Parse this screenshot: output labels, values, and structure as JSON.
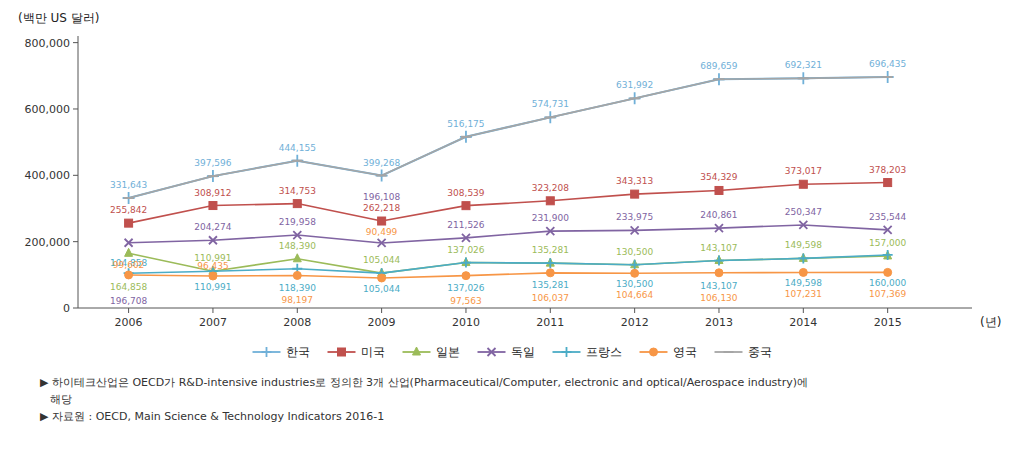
{
  "chart_data": {
    "type": "line",
    "x": [
      2006,
      2007,
      2008,
      2009,
      2010,
      2011,
      2012,
      2013,
      2014,
      2015
    ],
    "xlim": [
      2005.4,
      2016
    ],
    "xticks": [
      2006,
      2007,
      2008,
      2009,
      2010,
      2011,
      2012,
      2013,
      2014,
      2015
    ],
    "ylim": [
      0,
      820000
    ],
    "yticks": [
      0,
      {
        "value": 200000,
        "label": "200,000"
      },
      {
        "value": 400000,
        "label": "400,000"
      },
      {
        "value": 600000,
        "label": "600,000"
      },
      {
        "value": 800000,
        "label": "800,000"
      }
    ],
    "y_label": "(백만 US 달러)",
    "x_label": "(년)",
    "grid": false,
    "legend": "bottom",
    "series": [
      {
        "name": "한국",
        "color": "#70B0D8",
        "marker": "plus",
        "data_labels": true,
        "values": [
          331643,
          397596,
          444155,
          399268,
          516175,
          574731,
          631992,
          689659,
          692321,
          696435
        ],
        "value_labels": [
          "331,643",
          "397,596",
          "444,155",
          "399,268",
          "516,175",
          "574,731",
          "631,992",
          "689,659",
          "692,321",
          "696,435"
        ]
      },
      {
        "name": "미국",
        "color": "#C0504D",
        "marker": "square",
        "data_labels": true,
        "values": [
          255842,
          308912,
          314753,
          262218,
          308539,
          323208,
          343313,
          354329,
          373017,
          378203
        ],
        "value_labels": [
          "255,842",
          "308,912",
          "314,753",
          "262,218",
          "308,539",
          "323,208",
          "343,313",
          "354,329",
          "373,017",
          "378,203"
        ]
      },
      {
        "name": "일본",
        "color": "#9BBB59",
        "marker": "triangle",
        "data_labels": true,
        "values": [
          164858,
          110991,
          148390,
          105044,
          137026,
          135281,
          130500,
          143107,
          149598,
          157000
        ],
        "value_labels": [
          "164,858",
          "110,991",
          "148,390",
          "105,044",
          "137,026",
          "135,281",
          "130,500",
          "143,107",
          "149,598",
          "157,000"
        ]
      },
      {
        "name": "독일",
        "color": "#8064A2",
        "marker": "x",
        "data_labels": true,
        "values": [
          196708,
          204274,
          219958,
          196108,
          211526,
          231900,
          233975,
          240861,
          250347,
          235544
        ],
        "value_labels": [
          "196,708",
          "204,274",
          "219,958",
          "196,108",
          "211,526",
          "231,900",
          "233,975",
          "240,861",
          "250,347",
          "235,544"
        ]
      },
      {
        "name": "프랑스",
        "color": "#4BACC6",
        "marker": "plus",
        "data_labels": true,
        "values": [
          104858,
          110991,
          118390,
          105044,
          137026,
          135281,
          130500,
          143107,
          149598,
          160000
        ],
        "value_labels": [
          "104,858",
          "110,991",
          "118,390",
          "105,044",
          "137,026",
          "135,281",
          "130,500",
          "143,107",
          "149,598",
          "160,000"
        ]
      },
      {
        "name": "영국",
        "color": "#F79646",
        "marker": "circle",
        "data_labels": true,
        "values": [
          99602,
          96435,
          98197,
          90499,
          97563,
          106037,
          104664,
          106130,
          107231,
          107369
        ],
        "value_labels": [
          "99,602",
          "96,435",
          "98,197",
          "90,499",
          "97,563",
          "106,037",
          "104,664",
          "106,130",
          "107,231",
          "107,369"
        ]
      },
      {
        "name": "중국",
        "color": "#A5A5A5",
        "marker": "hline",
        "data_labels": false,
        "values": [
          331643,
          397596,
          444155,
          399268,
          516175,
          574731,
          631992,
          689659,
          692321,
          696435
        ]
      }
    ],
    "annotations": [
      "▶ 하이테크산업은 OECD가 R&D-intensive industries로 정의한 3개 산업(Pharmaceutical/Computer, electronic and optical/Aerospace industry)에",
      "   해당",
      "▶ 자료원 : OECD, Main Science & Technology Indicators 2016-1"
    ]
  }
}
